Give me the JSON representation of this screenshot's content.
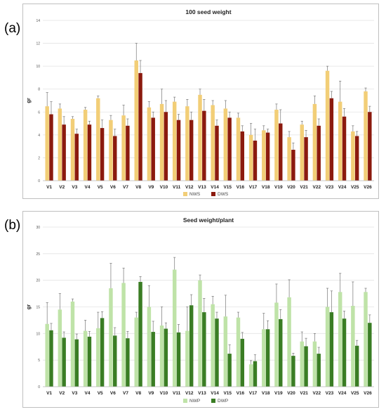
{
  "panels": [
    {
      "label": "(a)",
      "chart_data": {
        "type": "bar",
        "title": "100 seed weight",
        "ylabel": "gr",
        "xlabel": "",
        "ylim": [
          0,
          14
        ],
        "yticks": [
          0,
          2,
          4,
          6,
          8,
          10,
          12,
          14
        ],
        "grid": true,
        "legend_position": "bottom",
        "categories": [
          "V1",
          "V2",
          "V3",
          "V4",
          "V5",
          "V6",
          "V7",
          "V8",
          "V9",
          "V10",
          "V11",
          "V12",
          "V13",
          "V14",
          "V15",
          "V16",
          "V17",
          "V18",
          "V19",
          "V20",
          "V21",
          "V22",
          "V23",
          "V24",
          "V25",
          "V26"
        ],
        "series": [
          {
            "name": "NWS",
            "color": "#f2ce77",
            "values": [
              6.5,
              6.3,
              5.4,
              6.2,
              7.2,
              5.3,
              5.7,
              10.5,
              6.4,
              6.7,
              6.9,
              6.5,
              7.5,
              6.6,
              6.3,
              5.5,
              4.0,
              4.4,
              6.2,
              3.8,
              4.9,
              6.7,
              9.6,
              6.9,
              4.3,
              7.8
            ],
            "errors": [
              1.2,
              0.4,
              0.2,
              0.2,
              0.2,
              0.4,
              0.9,
              1.5,
              0.5,
              1.3,
              0.4,
              0.6,
              0.5,
              0.4,
              0.7,
              0.4,
              1.0,
              0.4,
              0.5,
              0.5,
              0.3,
              0.7,
              0.4,
              1.8,
              0.5,
              0.3
            ]
          },
          {
            "name": "DWS",
            "color": "#8b1a0e",
            "values": [
              5.8,
              4.9,
              4.1,
              4.9,
              4.6,
              3.9,
              4.8,
              9.4,
              5.5,
              6.0,
              5.3,
              5.3,
              6.1,
              4.8,
              5.5,
              4.3,
              3.5,
              4.2,
              5.0,
              2.7,
              3.8,
              4.8,
              7.2,
              5.6,
              3.9,
              6.0
            ],
            "errors": [
              1.1,
              0.7,
              0.4,
              0.3,
              0.7,
              0.6,
              0.6,
              1.1,
              0.5,
              1.0,
              0.5,
              0.7,
              1.0,
              0.5,
              0.5,
              0.5,
              1.0,
              0.3,
              1.2,
              0.6,
              0.6,
              0.6,
              0.6,
              0.7,
              0.4,
              0.5
            ]
          }
        ]
      }
    },
    {
      "label": "(b)",
      "chart_data": {
        "type": "bar",
        "title": "Seed weight/plant",
        "ylabel": "gr",
        "xlabel": "",
        "ylim": [
          0,
          30
        ],
        "yticks": [
          0,
          5,
          10,
          15,
          20,
          25,
          30
        ],
        "grid": true,
        "legend_position": "bottom",
        "categories": [
          "V1",
          "V2",
          "V3",
          "V4",
          "V5",
          "V6",
          "V7",
          "V8",
          "V9",
          "V10",
          "V11",
          "V12",
          "V13",
          "V14",
          "V15",
          "V16",
          "V17",
          "V18",
          "V19",
          "V20",
          "V21",
          "V22",
          "V23",
          "V24",
          "V25",
          "V26"
        ],
        "series": [
          {
            "name": "NWP",
            "color": "#bfe3a8",
            "values": [
              11.8,
              14.5,
              16.0,
              10.5,
              11.0,
              18.5,
              19.5,
              13.0,
              15.0,
              11.5,
              22.0,
              10.5,
              20.0,
              15.5,
              13.2,
              13.0,
              4.2,
              10.8,
              15.8,
              16.8,
              8.5,
              8.5,
              15.0,
              17.8,
              15.2,
              17.8
            ],
            "errors": [
              4.0,
              3.0,
              0.5,
              2.0,
              3.0,
              4.7,
              2.8,
              1.0,
              4.0,
              3.5,
              2.3,
              4.5,
              1.0,
              1.5,
              4.0,
              1.0,
              0.7,
              3.0,
              3.5,
              3.3,
              1.8,
              1.5,
              3.5,
              3.5,
              4.5,
              0.7
            ]
          },
          {
            "name": "DWP",
            "color": "#3a7d24",
            "values": [
              10.6,
              9.2,
              8.9,
              9.4,
              12.9,
              9.6,
              9.1,
              19.7,
              10.3,
              10.9,
              10.2,
              15.3,
              14.0,
              12.8,
              6.2,
              9.0,
              4.8,
              10.8,
              12.7,
              5.8,
              7.6,
              6.2,
              14.0,
              12.8,
              7.7,
              12.0
            ],
            "errors": [
              1.3,
              1.1,
              1.0,
              1.0,
              1.2,
              1.5,
              1.3,
              1.0,
              2.0,
              1.1,
              1.5,
              2.0,
              2.6,
              1.2,
              1.7,
              1.2,
              1.2,
              1.6,
              1.8,
              0.5,
              1.5,
              1.2,
              4.0,
              1.4,
              1.0,
              1.5
            ]
          }
        ]
      }
    }
  ]
}
